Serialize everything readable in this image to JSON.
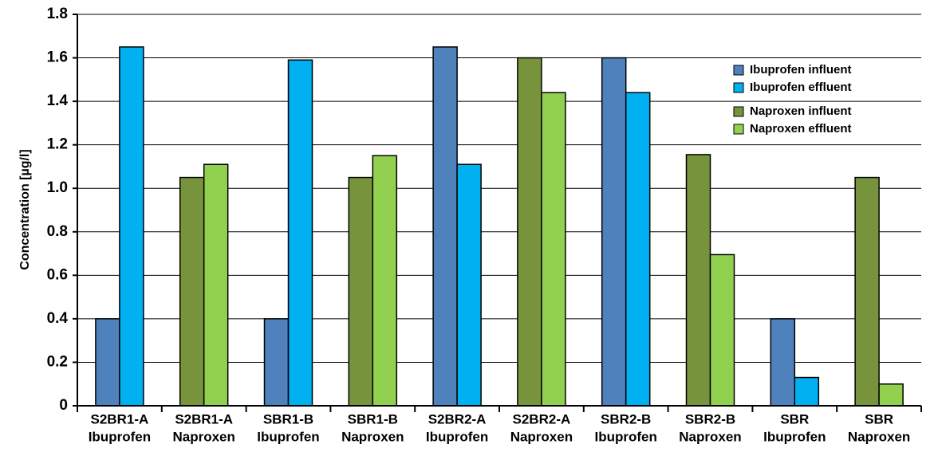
{
  "chart_data": {
    "type": "bar",
    "y_label": "Concentration [µg/l]",
    "categories": [
      [
        "S2BR1-A",
        "Ibuprofen"
      ],
      [
        "S2BR1-A",
        "Naproxen"
      ],
      [
        "SBR1-B",
        "Ibuprofen"
      ],
      [
        "SBR1-B",
        "Naproxen"
      ],
      [
        "S2BR2-A",
        "Ibuprofen"
      ],
      [
        "S2BR2-A",
        "Naproxen"
      ],
      [
        "SBR2-B",
        "Ibuprofen"
      ],
      [
        "SBR2-B",
        "Naproxen"
      ],
      [
        "SBR",
        "Ibuprofen"
      ],
      [
        "SBR",
        "Naproxen"
      ]
    ],
    "series": [
      {
        "name": "Ibuprofen influent",
        "color": "#4f81bd",
        "values": [
          0.4,
          null,
          0.4,
          null,
          1.65,
          null,
          1.6,
          null,
          0.4,
          null
        ]
      },
      {
        "name": "Ibuprofen effluent",
        "color": "#00b0f0",
        "values": [
          1.65,
          null,
          1.59,
          null,
          1.11,
          null,
          1.44,
          null,
          0.13,
          null
        ]
      },
      {
        "name": "Naproxen influent",
        "color": "#77933c",
        "values": [
          null,
          1.05,
          null,
          1.05,
          null,
          1.6,
          null,
          1.155,
          null,
          1.05
        ]
      },
      {
        "name": "Naproxen effluent",
        "color": "#92d050",
        "values": [
          null,
          1.11,
          null,
          1.15,
          null,
          1.44,
          null,
          0.695,
          null,
          0.1
        ]
      }
    ],
    "ylim": [
      0,
      1.8
    ],
    "yticks": [
      0,
      0.2,
      0.4,
      0.6,
      0.8,
      {
        "value": 1,
        "label": "1.0"
      },
      1.2,
      1.4,
      1.6,
      1.8
    ],
    "grid": true,
    "legend": "upper right"
  }
}
